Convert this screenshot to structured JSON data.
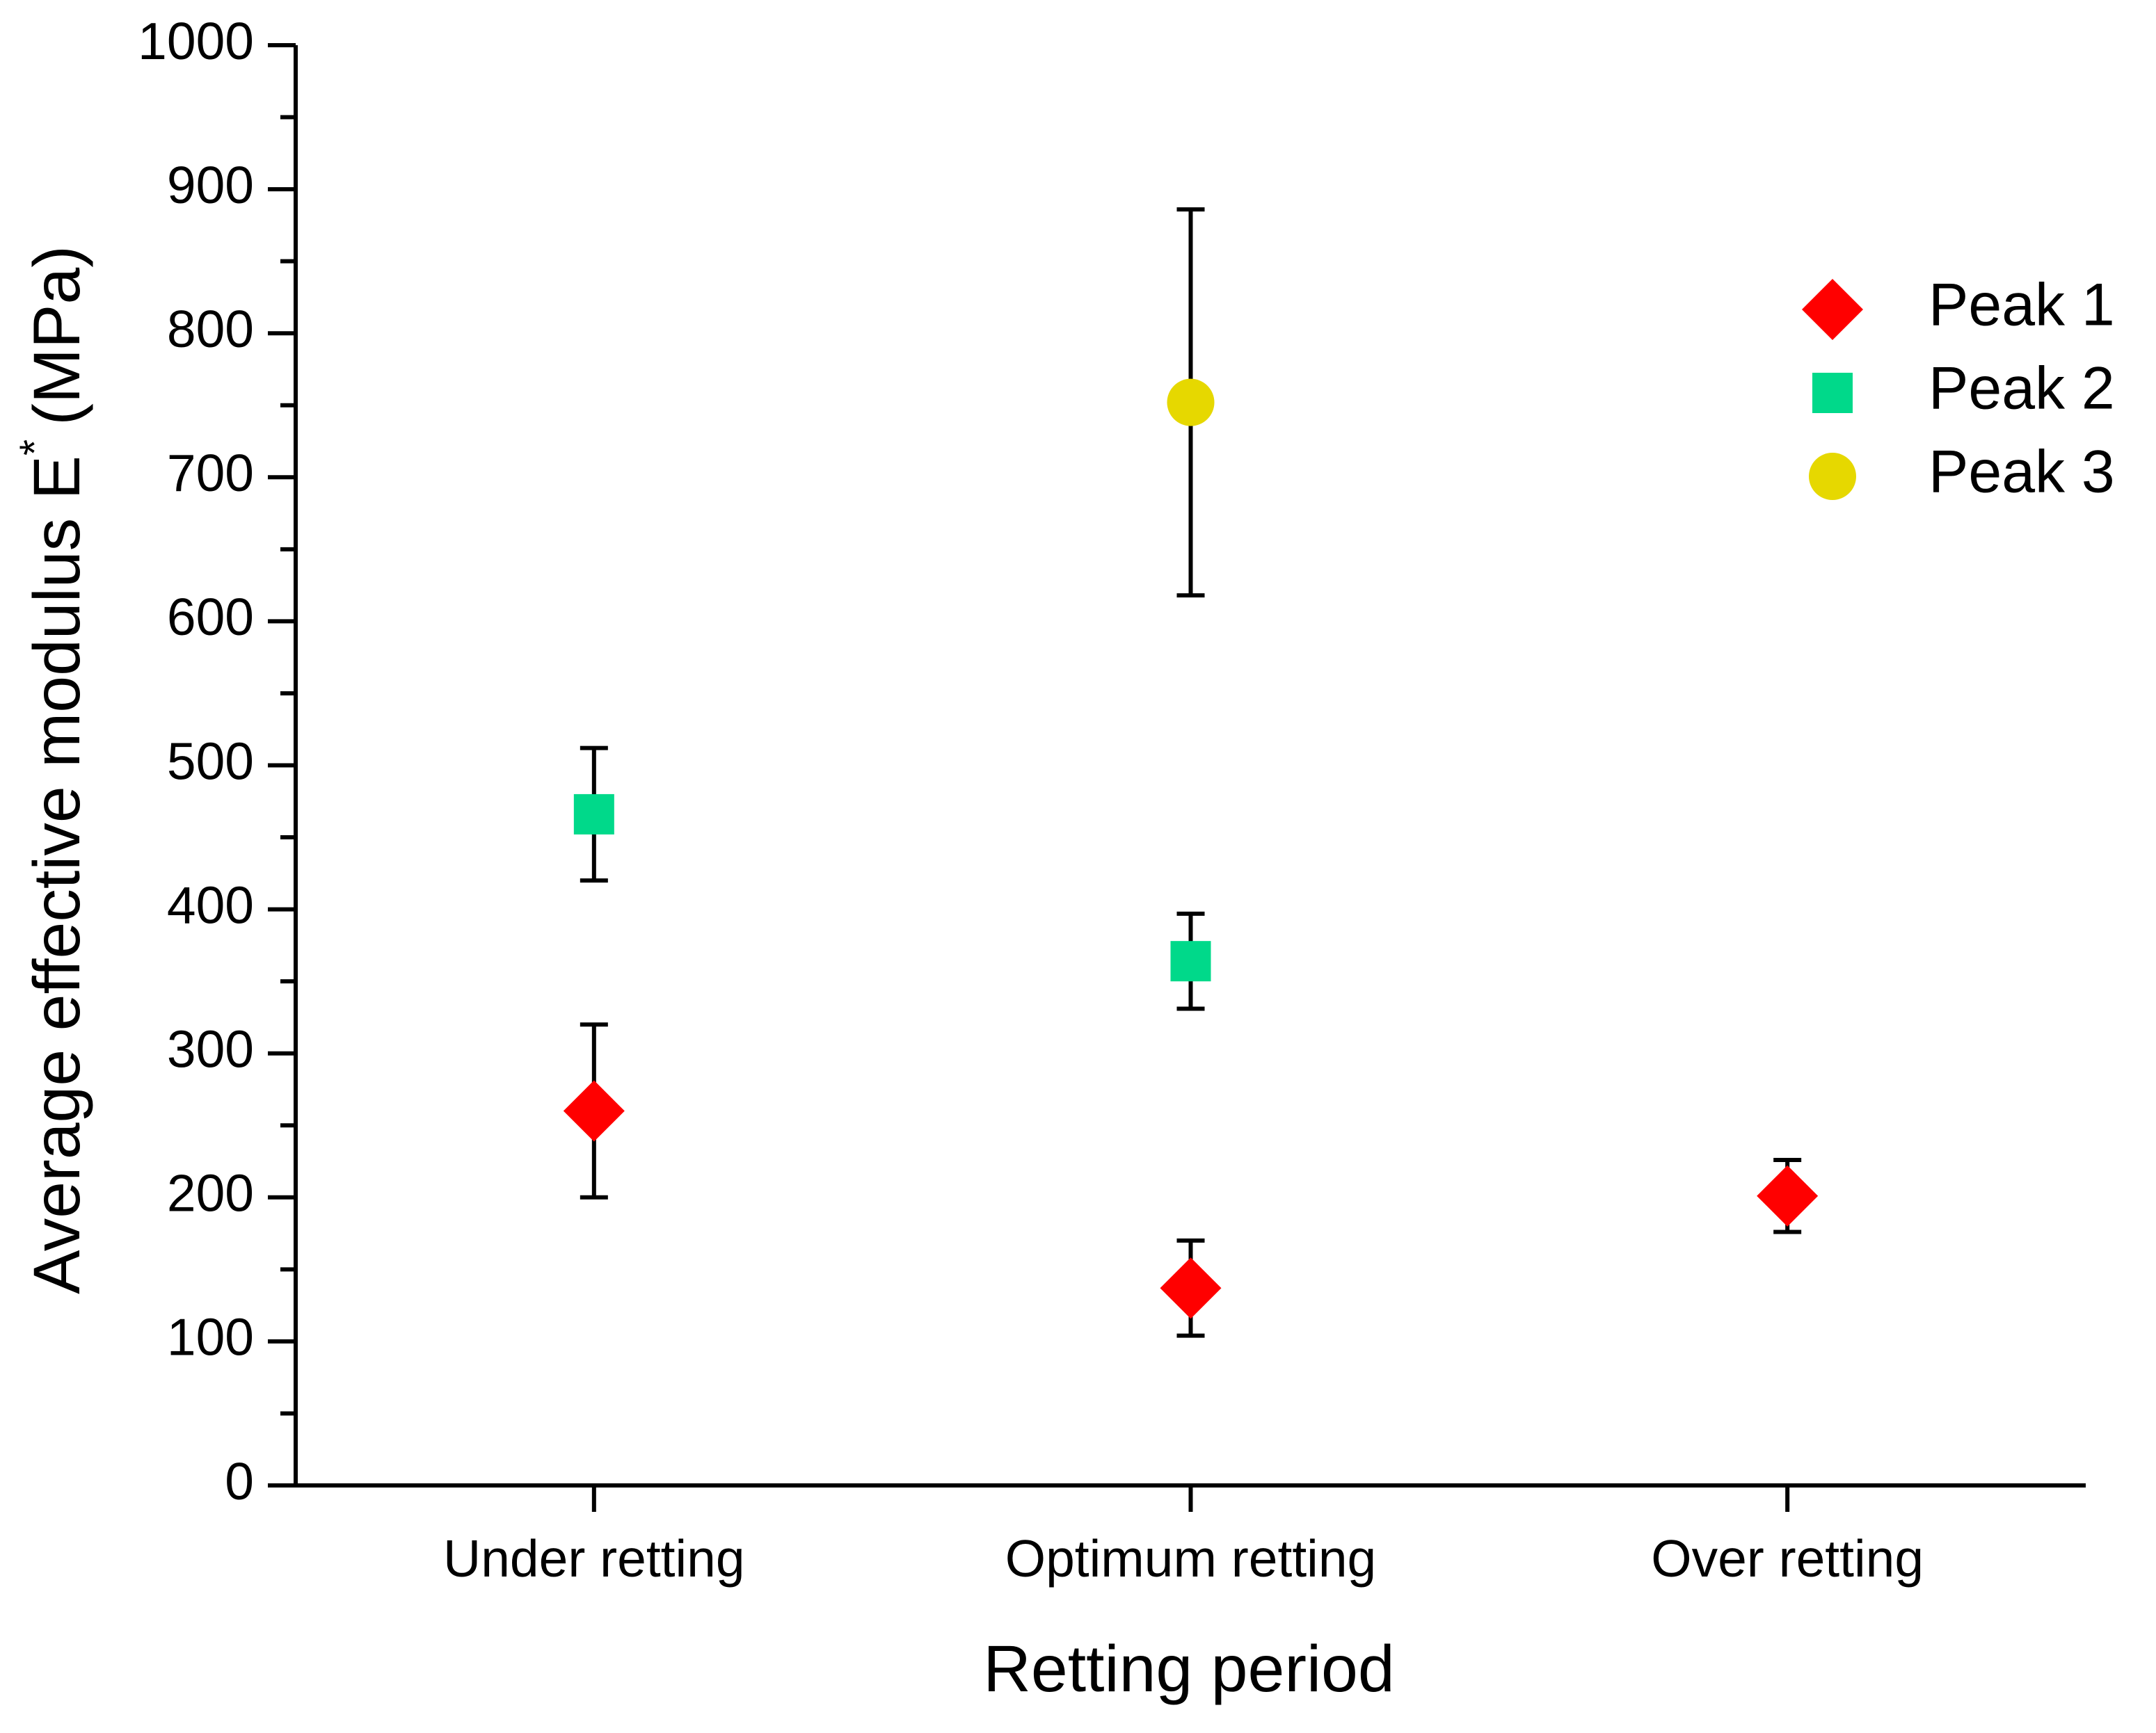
{
  "chart_data": {
    "type": "scatter",
    "x_label": "Retting period",
    "y_label": {
      "main": "Average effective modulus E",
      "sup": "*",
      "unit": "(MPa)"
    },
    "categories": [
      "Under retting",
      "Optimum retting",
      "Over retting"
    ],
    "series": [
      {
        "name": "Peak 1",
        "color": "#ff0000",
        "marker": "diamond",
        "values": [
          260,
          137,
          201
        ],
        "errors": [
          60,
          33,
          25
        ]
      },
      {
        "name": "Peak 2",
        "color": "#00d98a",
        "marker": "square",
        "values": [
          466,
          364,
          null
        ],
        "errors": [
          46,
          33,
          null
        ]
      },
      {
        "name": "Peak 3",
        "color": "#e6d800",
        "marker": "circle",
        "values": [
          null,
          752,
          null
        ],
        "errors": [
          null,
          134,
          null
        ]
      }
    ],
    "ylim": [
      0,
      1000
    ],
    "yticks": [
      0,
      100,
      200,
      300,
      400,
      500,
      600,
      700,
      800,
      900,
      1000
    ],
    "legend": "upper right"
  }
}
